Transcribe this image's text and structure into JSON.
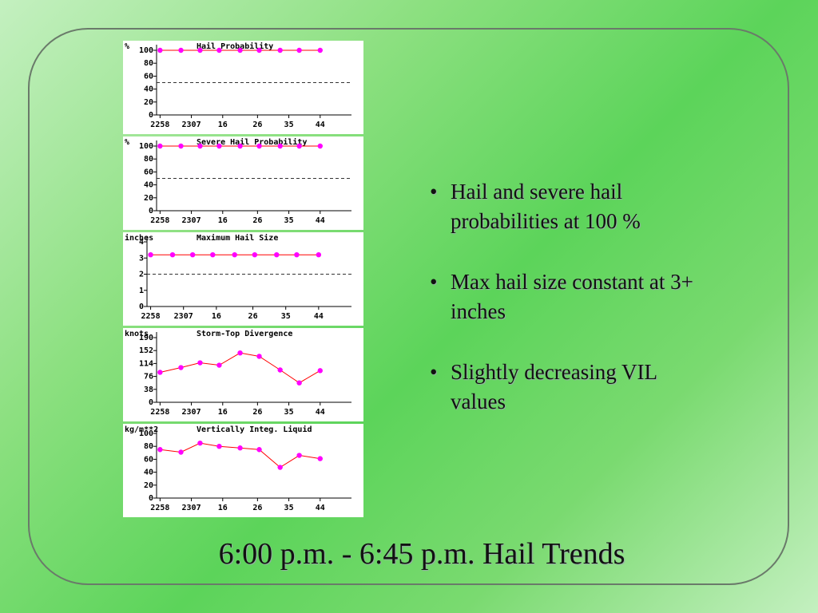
{
  "title": "6:00 p.m. - 6:45 p.m. Hail Trends",
  "bullets": [
    "Hail and severe hail probabilities at 100 %",
    "Max hail size constant at 3+ inches",
    "Slightly decreasing VIL values"
  ],
  "chart_data": [
    {
      "type": "line",
      "title": "Hail Probability",
      "ylabel": "%",
      "x": [
        0,
        6,
        11.5,
        17,
        23,
        28.5,
        34.5,
        40,
        46
      ],
      "series": [
        {
          "color": "#ff00ff",
          "line_color": "#ff0000",
          "values": [
            100,
            100,
            100,
            100,
            100,
            100,
            100,
            100,
            100
          ]
        }
      ],
      "threshold": 50,
      "xlim": [
        -1,
        55
      ],
      "ylim": [
        0,
        100
      ],
      "yticks": [
        0,
        20,
        40,
        60,
        80,
        100
      ],
      "xticks": [
        {
          "value": 0,
          "label": "2258"
        },
        {
          "value": 9,
          "label": "2307"
        },
        {
          "value": 18,
          "label": "16"
        },
        {
          "value": 28,
          "label": "26"
        },
        {
          "value": 37,
          "label": "35"
        },
        {
          "value": 46,
          "label": "44"
        }
      ]
    },
    {
      "type": "line",
      "title": "Severe Hail Probability",
      "ylabel": "%",
      "x": [
        0,
        6,
        11.5,
        17,
        23,
        28.5,
        34.5,
        40,
        46
      ],
      "series": [
        {
          "color": "#ff00ff",
          "line_color": "#ff0000",
          "values": [
            100,
            100,
            100,
            100,
            100,
            100,
            100,
            100,
            100
          ]
        }
      ],
      "threshold": 50,
      "xlim": [
        -1,
        55
      ],
      "ylim": [
        0,
        100
      ],
      "yticks": [
        0,
        20,
        40,
        60,
        80,
        100
      ],
      "xticks": [
        {
          "value": 0,
          "label": "2258"
        },
        {
          "value": 9,
          "label": "2307"
        },
        {
          "value": 18,
          "label": "16"
        },
        {
          "value": 28,
          "label": "26"
        },
        {
          "value": 37,
          "label": "35"
        },
        {
          "value": 46,
          "label": "44"
        }
      ]
    },
    {
      "type": "line",
      "title": "Maximum Hail Size",
      "ylabel": "inches",
      "x": [
        0,
        6,
        11.5,
        17,
        23,
        28.5,
        34.5,
        40,
        46
      ],
      "series": [
        {
          "color": "#ff00ff",
          "line_color": "#ff0000",
          "values": [
            3.2,
            3.2,
            3.2,
            3.2,
            3.2,
            3.2,
            3.2,
            3.2,
            3.2
          ]
        }
      ],
      "threshold": 2,
      "xlim": [
        -1,
        55
      ],
      "ylim": [
        0,
        4
      ],
      "yticks": [
        0,
        1,
        2,
        3,
        4
      ],
      "xticks": [
        {
          "value": 0,
          "label": "2258"
        },
        {
          "value": 9,
          "label": "2307"
        },
        {
          "value": 18,
          "label": "16"
        },
        {
          "value": 28,
          "label": "26"
        },
        {
          "value": 37,
          "label": "35"
        },
        {
          "value": 46,
          "label": "44"
        }
      ]
    },
    {
      "type": "line",
      "title": "Storm-Top Divergence",
      "ylabel": "knots",
      "x": [
        0,
        6,
        11.5,
        17,
        23,
        28.5,
        34.5,
        40,
        46
      ],
      "series": [
        {
          "color": "#ff00ff",
          "line_color": "#ff0000",
          "values": [
            88,
            102,
            116,
            109,
            145,
            135,
            95,
            57,
            93
          ]
        }
      ],
      "xlim": [
        -1,
        55
      ],
      "ylim": [
        0,
        190
      ],
      "yticks": [
        0,
        38,
        76,
        114,
        152,
        190
      ],
      "xticks": [
        {
          "value": 0,
          "label": "2258"
        },
        {
          "value": 9,
          "label": "2307"
        },
        {
          "value": 18,
          "label": "16"
        },
        {
          "value": 28,
          "label": "26"
        },
        {
          "value": 37,
          "label": "35"
        },
        {
          "value": 46,
          "label": "44"
        }
      ]
    },
    {
      "type": "line",
      "title": "Vertically Integ. Liquid",
      "ylabel": "kg/m**2",
      "x": [
        0,
        6,
        11.5,
        17,
        23,
        28.5,
        34.5,
        40,
        46
      ],
      "series": [
        {
          "color": "#ff00ff",
          "line_color": "#ff0000",
          "values": [
            75,
            71,
            85,
            80,
            77.5,
            75,
            47.5,
            66,
            61
          ]
        }
      ],
      "xlim": [
        -1,
        55
      ],
      "ylim": [
        0,
        100
      ],
      "yticks": [
        0,
        20,
        40,
        60,
        80,
        100
      ],
      "xticks": [
        {
          "value": 0,
          "label": "2258"
        },
        {
          "value": 9,
          "label": "2307"
        },
        {
          "value": 18,
          "label": "16"
        },
        {
          "value": 28,
          "label": "26"
        },
        {
          "value": 37,
          "label": "35"
        },
        {
          "value": 46,
          "label": "44"
        }
      ]
    }
  ]
}
